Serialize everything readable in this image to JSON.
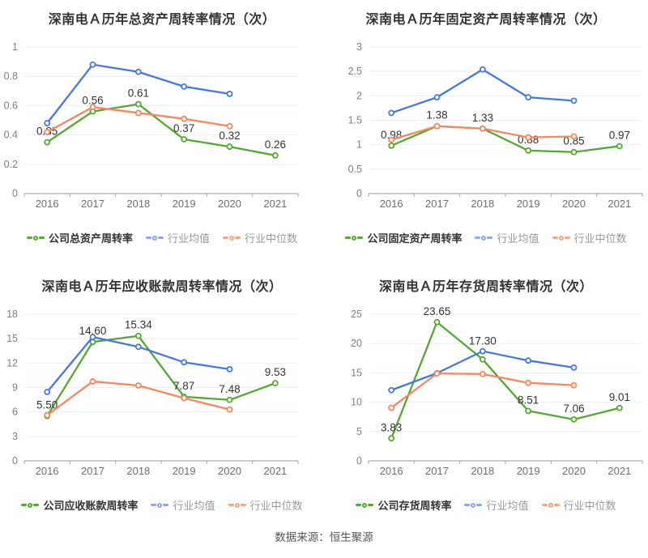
{
  "footer": {
    "source_note": "数据来源：恒生聚源"
  },
  "colors": {
    "company": "#55A831",
    "mean": "#4678E2",
    "median": "#F6875F",
    "mean_legend": "#8AA7EC",
    "median_legend": "#F5A887",
    "grid": "#E9EEF6",
    "axis": "#999999",
    "x_tick": "#6E6E6E",
    "y_tick": "#808080",
    "value_label": "#333333",
    "title": "#333333"
  },
  "chart_data": [
    {
      "type": "line",
      "slug": "total-asset-turnover",
      "title": "深南电Ａ历年总资产周转率情况（次）",
      "x": [
        "2016",
        "2017",
        "2018",
        "2019",
        "2020",
        "2021"
      ],
      "ylim": [
        0,
        1
      ],
      "yticks": [
        0,
        0.2,
        0.4,
        0.6,
        0.8,
        1
      ],
      "legend_position": "bottom",
      "grid": true,
      "series": [
        {
          "name": "公司总资产周转率",
          "role": "company",
          "values": [
            0.35,
            0.56,
            0.61,
            0.37,
            0.32,
            0.26
          ],
          "labels": [
            "0.35",
            "0.56",
            "0.61",
            "0.37",
            "0.32",
            "0.26"
          ],
          "label_dy": [
            0,
            0,
            0,
            0,
            0,
            0
          ]
        },
        {
          "name": "行业均值",
          "role": "mean",
          "values": [
            0.48,
            0.88,
            0.83,
            0.73,
            0.68,
            null
          ]
        },
        {
          "name": "行业中位数",
          "role": "median",
          "values": [
            0.42,
            0.59,
            0.55,
            0.51,
            0.46,
            null
          ]
        }
      ]
    },
    {
      "type": "line",
      "slug": "fixed-asset-turnover",
      "title": "深南电Ａ历年固定资产周转率情况（次）",
      "x": [
        "2016",
        "2017",
        "2018",
        "2019",
        "2020",
        "2021"
      ],
      "ylim": [
        0,
        3
      ],
      "yticks": [
        0,
        0.5,
        1,
        1.5,
        2,
        2.5,
        3
      ],
      "legend_position": "bottom",
      "grid": true,
      "series": [
        {
          "name": "公司固定资产周转率",
          "role": "company",
          "values": [
            0.98,
            1.38,
            1.33,
            0.88,
            0.85,
            0.97
          ],
          "labels": [
            "0.98",
            "1.38",
            "1.33",
            "0.88",
            "0.85",
            "0.97"
          ],
          "label_dy": [
            0,
            0,
            0,
            0,
            0,
            0
          ]
        },
        {
          "name": "行业均值",
          "role": "mean",
          "values": [
            1.65,
            1.97,
            2.54,
            1.97,
            1.9,
            null
          ]
        },
        {
          "name": "行业中位数",
          "role": "median",
          "values": [
            1.1,
            1.38,
            1.33,
            1.15,
            1.17,
            null
          ]
        }
      ]
    },
    {
      "type": "line",
      "slug": "receivables-turnover",
      "title": "深南电Ａ历年应收账款周转率情况（次）",
      "x": [
        "2016",
        "2017",
        "2018",
        "2019",
        "2020",
        "2021"
      ],
      "ylim": [
        0,
        18
      ],
      "yticks": [
        0,
        3,
        6,
        9,
        12,
        15,
        18
      ],
      "legend_position": "bottom",
      "grid": true,
      "series": [
        {
          "name": "公司应收账款周转率",
          "role": "company",
          "values": [
            5.5,
            14.6,
            15.34,
            7.87,
            7.48,
            9.53
          ],
          "labels": [
            "5.50",
            "14.60",
            "15.34",
            "7.87",
            "7.48",
            "9.53"
          ],
          "label_dy": [
            0,
            0,
            0,
            0,
            0,
            0
          ]
        },
        {
          "name": "行业均值",
          "role": "mean",
          "values": [
            8.45,
            15.2,
            14.0,
            12.1,
            11.25,
            null
          ]
        },
        {
          "name": "行业中位数",
          "role": "median",
          "values": [
            5.6,
            9.75,
            9.25,
            7.7,
            6.3,
            null
          ]
        }
      ]
    },
    {
      "type": "line",
      "slug": "inventory-turnover",
      "title": "深南电Ａ历年存货周转率情况（次）",
      "x": [
        "2016",
        "2017",
        "2018",
        "2019",
        "2020",
        "2021"
      ],
      "ylim": [
        0,
        25
      ],
      "yticks": [
        0,
        5,
        10,
        15,
        20,
        25
      ],
      "legend_position": "bottom",
      "grid": true,
      "series": [
        {
          "name": "公司存货周转率",
          "role": "company",
          "values": [
            3.83,
            23.65,
            17.3,
            8.51,
            7.06,
            9.01
          ],
          "labels": [
            "3.83",
            "23.65",
            "17.30",
            "8.51",
            "7.06",
            "9.01"
          ],
          "label_dy": [
            0,
            0,
            -9,
            0,
            0,
            0
          ]
        },
        {
          "name": "行业均值",
          "role": "mean",
          "values": [
            12.05,
            14.95,
            18.7,
            17.1,
            15.9,
            null
          ]
        },
        {
          "name": "行业中位数",
          "role": "median",
          "values": [
            9.05,
            14.9,
            14.8,
            13.3,
            12.9,
            null
          ]
        }
      ]
    }
  ]
}
